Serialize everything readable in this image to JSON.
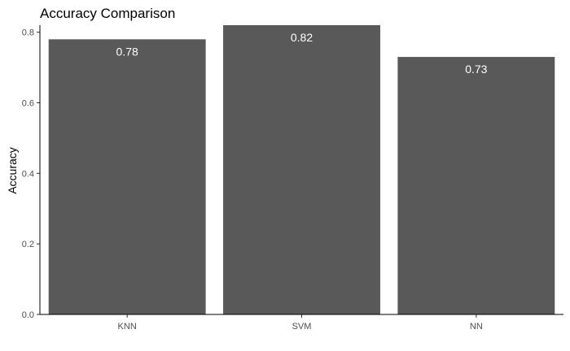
{
  "chart_data": {
    "type": "bar",
    "title": "Accuracy Comparison",
    "xlabel": "",
    "ylabel": "Accuracy",
    "categories": [
      "KNN",
      "SVM",
      "NN"
    ],
    "values": [
      0.78,
      0.82,
      0.73
    ],
    "data_labels": [
      "0.78",
      "0.82",
      "0.73"
    ],
    "ylim": [
      0,
      0.82
    ],
    "yticks": [
      0.0,
      0.2,
      0.4,
      0.6,
      0.8
    ],
    "ytick_labels": [
      "0.0",
      "0.2",
      "0.4",
      "0.6",
      "0.8"
    ],
    "grid": false,
    "legend": "none",
    "bar_color": "#595959",
    "label_color": "#ffffff"
  }
}
